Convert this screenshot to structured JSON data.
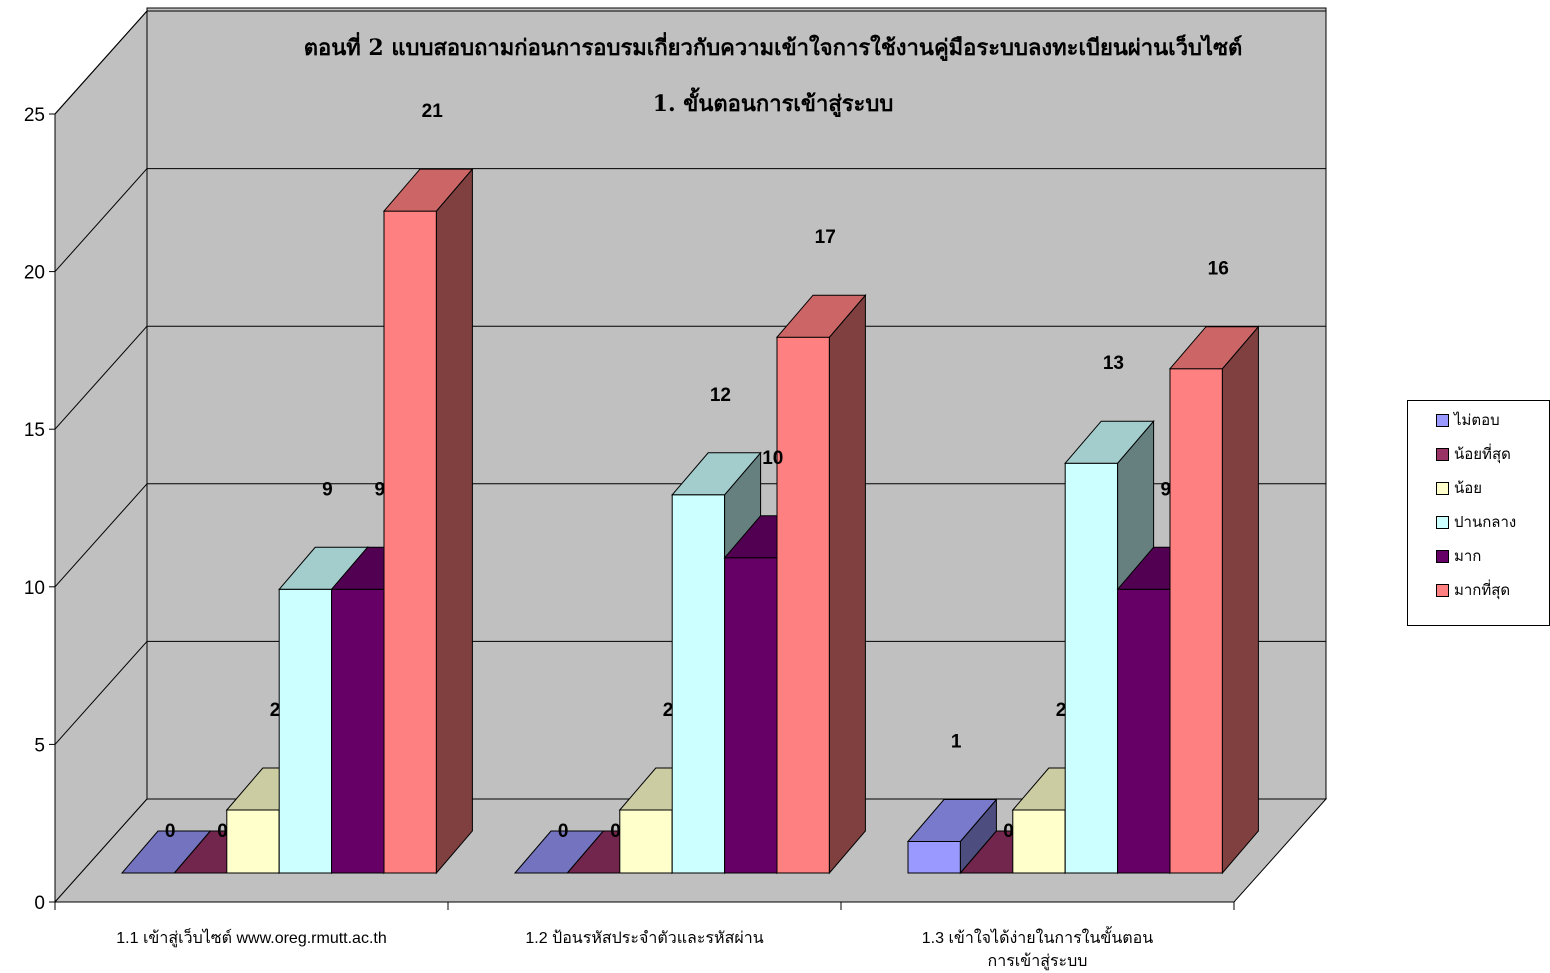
{
  "chart_data": {
    "type": "bar",
    "title": "ตอนที่ 2 แบบสอบถามก่อนการอบรมเกี่ยวกับความเข้าใจการใช้งานคู่มือระบบลงทะเบียนผ่านเว็บไซต์",
    "subtitle": "1. ขั้นตอนการเข้าสู่ระบบ",
    "xlabel": "",
    "ylabel": "",
    "ylim": [
      0,
      25
    ],
    "yticks": [
      "0",
      "5",
      "10",
      "15",
      "20",
      "25"
    ],
    "grid": true,
    "legend_position": "right",
    "categories": [
      [
        "1.1 เข้าสู่เว็บไซต์ www.oreg.rmutt.ac.th"
      ],
      [
        "1.2 ป้อนรหัสประจำตัวและรหัสผ่าน"
      ],
      [
        "1.3 เข้าใจได้ง่ายในการในขั้นตอน",
        "การเข้าสู่ระบบ"
      ]
    ],
    "series": [
      {
        "name": "ไม่ตอบ",
        "values": [
          0,
          0,
          1
        ],
        "labels": [
          "0",
          "0",
          "1"
        ],
        "color": "#9999ff"
      },
      {
        "name": "น้อยที่สุด",
        "values": [
          0,
          0,
          0
        ],
        "labels": [
          "0",
          "0",
          "0"
        ],
        "color": "#993366"
      },
      {
        "name": "น้อย",
        "values": [
          2,
          2,
          2
        ],
        "labels": [
          "2",
          "2",
          "2"
        ],
        "color": "#ffffcc"
      },
      {
        "name": "ปานกลาง",
        "values": [
          9,
          12,
          13
        ],
        "labels": [
          "9",
          "12",
          "13"
        ],
        "color": "#ccffff"
      },
      {
        "name": "มาก",
        "values": [
          9,
          10,
          9
        ],
        "labels": [
          "9",
          "10",
          "9"
        ],
        "color": "#660066"
      },
      {
        "name": "มากที่สุด",
        "values": [
          21,
          17,
          16
        ],
        "labels": [
          "21",
          "17",
          "16"
        ],
        "color": "#ff8080"
      }
    ]
  },
  "colors": {
    "wall": "#c0c0c0",
    "floor": "#c0c0c0",
    "gridline": "#000000"
  }
}
